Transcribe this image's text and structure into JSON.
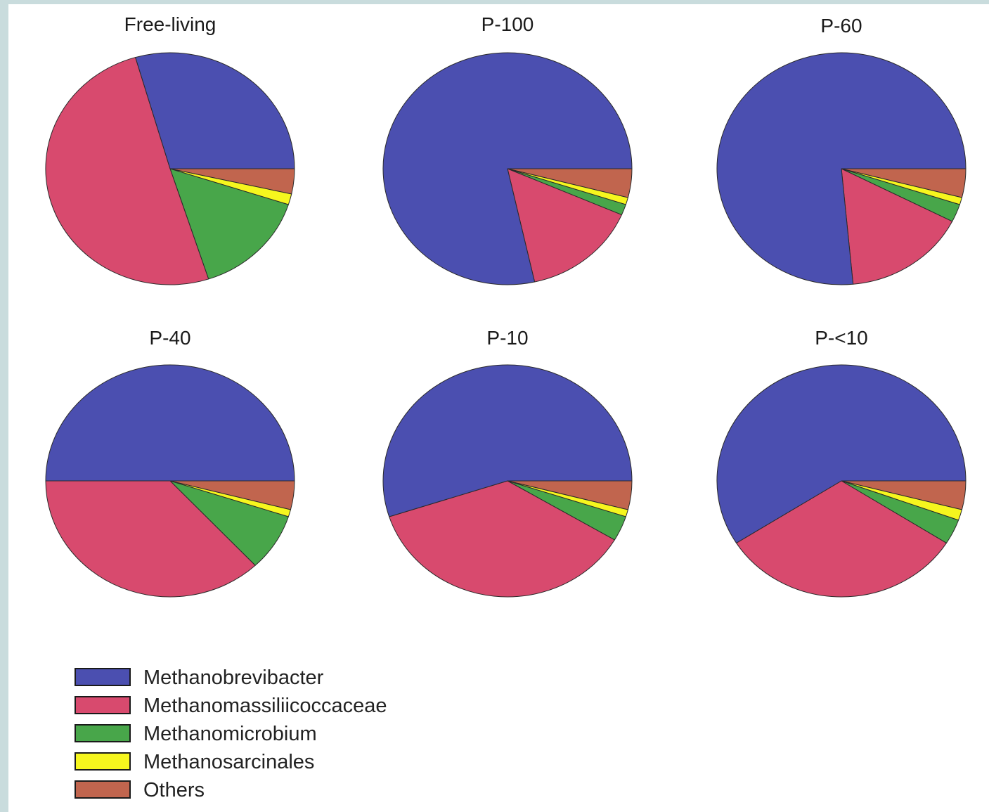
{
  "colors": {
    "Methanobrevibacter": "#4b4fb0",
    "Methanomassiliicoccaceae": "#d84a6e",
    "Methanomicrobium": "#48a64a",
    "Methanosarcinales": "#f6f61e",
    "Others": "#c1654e"
  },
  "chart_data": [
    {
      "type": "pie",
      "title": "Free-living",
      "series": [
        {
          "name": "Methanobrevibacter",
          "value": 29.5
        },
        {
          "name": "Methanomassiliicoccaceae",
          "value": 50.5
        },
        {
          "name": "Methanomicrobium",
          "value": 15.0
        },
        {
          "name": "Methanosarcinales",
          "value": 1.5
        },
        {
          "name": "Others",
          "value": 3.5
        }
      ]
    },
    {
      "type": "pie",
      "title": "P-100",
      "series": [
        {
          "name": "Methanobrevibacter",
          "value": 78.5
        },
        {
          "name": "Methanomassiliicoccaceae",
          "value": 15.0
        },
        {
          "name": "Methanomicrobium",
          "value": 1.5
        },
        {
          "name": "Methanosarcinales",
          "value": 1.0
        },
        {
          "name": "Others",
          "value": 4.0
        }
      ]
    },
    {
      "type": "pie",
      "title": "P-60",
      "series": [
        {
          "name": "Methanobrevibacter",
          "value": 76.5
        },
        {
          "name": "Methanomassiliicoccaceae",
          "value": 16.0
        },
        {
          "name": "Methanomicrobium",
          "value": 2.5
        },
        {
          "name": "Methanosarcinales",
          "value": 1.0
        },
        {
          "name": "Others",
          "value": 4.0
        }
      ]
    },
    {
      "type": "pie",
      "title": "P-40",
      "series": [
        {
          "name": "Methanobrevibacter",
          "value": 50.0
        },
        {
          "name": "Methanomassiliicoccaceae",
          "value": 37.0
        },
        {
          "name": "Methanomicrobium",
          "value": 8.0
        },
        {
          "name": "Methanosarcinales",
          "value": 1.0
        },
        {
          "name": "Others",
          "value": 4.0
        }
      ]
    },
    {
      "type": "pie",
      "title": "P-10",
      "series": [
        {
          "name": "Methanobrevibacter",
          "value": 55.0
        },
        {
          "name": "Methanomassiliicoccaceae",
          "value": 36.5
        },
        {
          "name": "Methanomicrobium",
          "value": 3.5
        },
        {
          "name": "Methanosarcinales",
          "value": 1.0
        },
        {
          "name": "Others",
          "value": 4.0
        }
      ]
    },
    {
      "type": "pie",
      "title": "P-<10",
      "series": [
        {
          "name": "Methanobrevibacter",
          "value": 59.0
        },
        {
          "name": "Methanomassiliicoccaceae",
          "value": 32.0
        },
        {
          "name": "Methanomicrobium",
          "value": 3.5
        },
        {
          "name": "Methanosarcinales",
          "value": 1.5
        },
        {
          "name": "Others",
          "value": 4.0
        }
      ]
    }
  ],
  "legend": {
    "placement": "bottom-left",
    "items": [
      "Methanobrevibacter",
      "Methanomassiliicoccaceae",
      "Methanomicrobium",
      "Methanosarcinales",
      "Others"
    ]
  }
}
